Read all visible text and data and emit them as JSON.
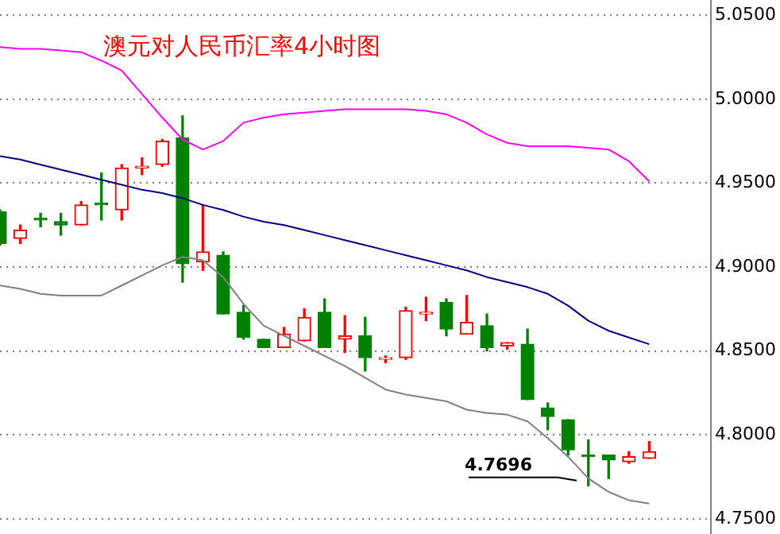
{
  "chart_data": {
    "type": "candlestick",
    "title": "澳元对人民币汇率4小时图",
    "categories": [
      null,
      null,
      null,
      null,
      null,
      null,
      null,
      null,
      null,
      null,
      null,
      null,
      null,
      null,
      null,
      null,
      null,
      null,
      null,
      null,
      null,
      null,
      null,
      null,
      null,
      null,
      null,
      null,
      null,
      null,
      null,
      null,
      null,
      null,
      null,
      null
    ],
    "ohlc": [
      [
        4.933,
        4.934,
        4.913,
        4.914
      ],
      [
        4.917,
        4.925,
        4.914,
        4.922
      ],
      [
        4.929,
        4.932,
        4.924,
        4.928
      ],
      [
        4.927,
        4.932,
        4.919,
        4.925
      ],
      [
        4.925,
        4.939,
        4.925,
        4.937
      ],
      [
        4.938,
        4.956,
        4.928,
        4.937
      ],
      [
        4.934,
        4.961,
        4.928,
        4.959
      ],
      [
        4.959,
        4.965,
        4.955,
        4.96
      ],
      [
        4.961,
        4.976,
        4.96,
        4.975
      ],
      [
        4.977,
        4.99,
        4.891,
        4.902
      ],
      [
        4.903,
        4.937,
        4.898,
        4.909
      ],
      [
        4.907,
        4.909,
        4.872,
        4.872
      ],
      [
        4.873,
        4.877,
        4.857,
        4.858
      ],
      [
        4.857,
        4.857,
        4.852,
        4.852
      ],
      [
        4.852,
        4.864,
        4.852,
        4.86
      ],
      [
        4.856,
        4.875,
        4.856,
        4.87
      ],
      [
        4.873,
        4.881,
        4.852,
        4.852
      ],
      [
        4.857,
        4.871,
        4.849,
        4.859
      ],
      [
        4.859,
        4.87,
        4.838,
        4.846
      ],
      [
        4.845,
        4.847,
        4.843,
        4.846
      ],
      [
        4.846,
        4.876,
        4.845,
        4.874
      ],
      [
        4.872,
        4.882,
        4.868,
        4.873
      ],
      [
        4.879,
        4.881,
        4.859,
        4.863
      ],
      [
        4.86,
        4.883,
        4.86,
        4.867
      ],
      [
        4.865,
        4.872,
        4.85,
        4.852
      ],
      [
        4.853,
        4.855,
        4.851,
        4.855
      ],
      [
        4.854,
        4.863,
        4.821,
        4.821
      ],
      [
        4.816,
        4.819,
        4.803,
        4.811
      ],
      [
        4.809,
        4.809,
        4.788,
        4.791
      ],
      [
        4.788,
        4.797,
        4.7696,
        4.787
      ],
      [
        4.788,
        4.788,
        4.774,
        4.785
      ],
      [
        4.784,
        4.79,
        4.783,
        4.787
      ],
      [
        4.786,
        4.796,
        4.786,
        4.79
      ],
      null,
      null,
      null
    ],
    "colors": [
      "#008000",
      "#ff0000",
      "#008000",
      "#008000",
      "#ff0000",
      "#008000",
      "#ff0000",
      "#ff0000",
      "#ff0000",
      "#008000",
      "#ff0000",
      "#008000",
      "#008000",
      "#008000",
      "#ff0000",
      "#ff0000",
      "#008000",
      "#ff0000",
      "#008000",
      "#ff0000",
      "#ff0000",
      "#ff0000",
      "#008000",
      "#ff0000",
      "#008000",
      "#ff0000",
      "#008000",
      "#008000",
      "#008000",
      "#008000",
      "#008000",
      "#ff0000",
      "#ff0000",
      null,
      null,
      null
    ],
    "series": [
      {
        "type": "line",
        "color": "#ff00ff",
        "values": [
          5.031,
          5.03,
          5.03,
          5.029,
          5.028,
          5.023,
          5.017,
          5.003,
          4.989,
          4.976,
          4.97,
          4.975,
          4.986,
          4.989,
          4.991,
          4.992,
          4.993,
          4.994,
          4.994,
          4.994,
          4.994,
          4.993,
          4.991,
          4.986,
          4.979,
          4.974,
          4.972,
          4.972,
          4.972,
          4.971,
          4.97,
          4.963,
          4.951,
          null,
          null,
          null
        ]
      },
      {
        "type": "line",
        "color": "#000080",
        "values": [
          4.966,
          4.964,
          4.961,
          4.958,
          4.955,
          4.952,
          4.949,
          4.946,
          4.944,
          4.941,
          4.937,
          4.934,
          4.93,
          4.927,
          4.925,
          4.922,
          4.919,
          4.916,
          4.913,
          4.91,
          4.907,
          4.904,
          4.901,
          4.898,
          4.894,
          4.891,
          4.888,
          4.884,
          4.877,
          4.868,
          4.862,
          4.858,
          4.854,
          null,
          null,
          null
        ]
      },
      {
        "type": "line",
        "color": "#808080",
        "values": [
          4.889,
          4.887,
          4.884,
          4.883,
          4.883,
          4.883,
          4.889,
          4.895,
          4.901,
          4.906,
          4.904,
          4.894,
          4.878,
          4.865,
          4.859,
          4.853,
          4.847,
          4.841,
          4.834,
          4.827,
          4.824,
          4.822,
          4.82,
          4.815,
          4.813,
          4.812,
          4.808,
          4.798,
          4.787,
          4.774,
          4.766,
          4.761,
          4.759,
          null,
          null,
          null
        ]
      }
    ],
    "ylim": [
      4.75,
      5.05
    ],
    "yticks": [
      {
        "value": 4.75,
        "label": "4.7500"
      },
      {
        "value": 4.8,
        "label": "4.8000"
      },
      {
        "value": 4.85,
        "label": "4.8500"
      },
      {
        "value": 4.9,
        "label": "4.9000"
      },
      {
        "value": 4.95,
        "label": "4.9500"
      },
      {
        "value": 5.0,
        "label": "5.0000"
      },
      {
        "value": 5.05,
        "label": "5.0500"
      }
    ],
    "annotations": [
      "4.7696"
    ],
    "grid": "y",
    "legend": false
  }
}
